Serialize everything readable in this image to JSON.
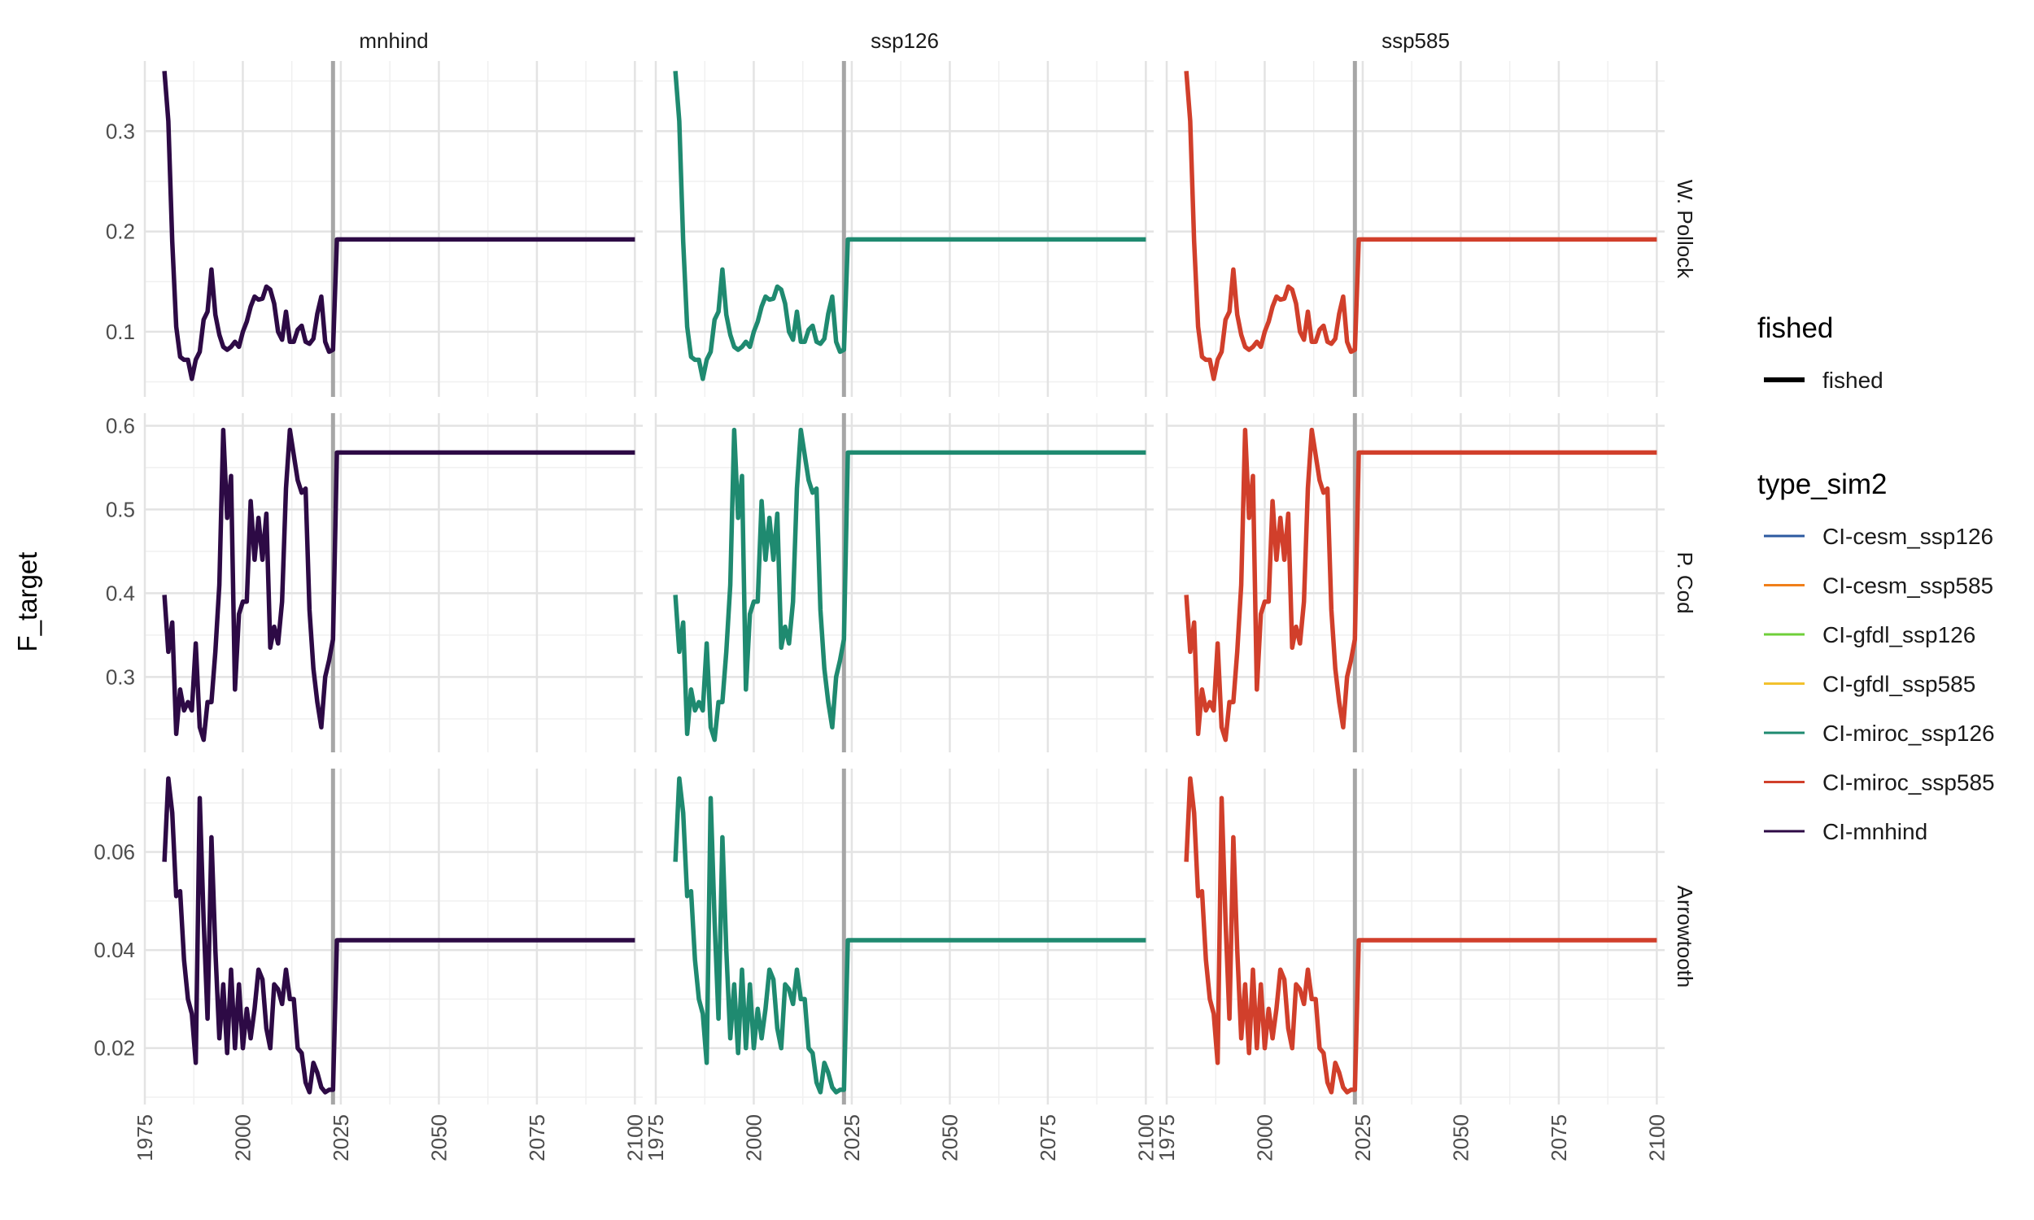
{
  "chart_data": {
    "type": "line",
    "facet_cols": [
      "mnhind",
      "ssp126",
      "ssp585"
    ],
    "facet_rows": [
      "W. Pollock",
      "P. Cod",
      "Arrowtooth"
    ],
    "ylabel": "F_target",
    "xlabel": "",
    "x_ticks": [
      1975,
      2000,
      2025,
      2050,
      2075,
      2100
    ],
    "x_range": [
      1975,
      2102
    ],
    "vline_x": 2023,
    "grid": true,
    "legend_position": "right",
    "column_colors": {
      "mnhind": "#2d0a45",
      "ssp126": "#1f8a70",
      "ssp585": "#d13f2b"
    },
    "legend_fished": {
      "title": "fished",
      "items": [
        {
          "label": "fished",
          "color": "#000000"
        }
      ]
    },
    "legend_type_sim2": {
      "title": "type_sim2",
      "items": [
        {
          "label": "CI-cesm_ssp126",
          "color": "#2c5aa0"
        },
        {
          "label": "CI-cesm_ssp585",
          "color": "#f07f1a"
        },
        {
          "label": "CI-gfdl_ssp126",
          "color": "#6fcf3a"
        },
        {
          "label": "CI-gfdl_ssp585",
          "color": "#f2c12e"
        },
        {
          "label": "CI-miroc_ssp126",
          "color": "#1f8a70"
        },
        {
          "label": "CI-miroc_ssp585",
          "color": "#d13f2b"
        },
        {
          "label": "CI-mnhind",
          "color": "#2d0a45"
        }
      ]
    },
    "rows": [
      {
        "name": "W. Pollock",
        "ylim": [
          0.035,
          0.37
        ],
        "y_ticks": [
          0.1,
          0.2,
          0.3
        ],
        "y_tick_labels": [
          "0.1",
          "0.2",
          "0.3"
        ],
        "x": [
          1980,
          1981,
          1982,
          1983,
          1984,
          1985,
          1986,
          1987,
          1988,
          1989,
          1990,
          1991,
          1992,
          1993,
          1994,
          1995,
          1996,
          1997,
          1998,
          1999,
          2000,
          2001,
          2002,
          2003,
          2004,
          2005,
          2006,
          2007,
          2008,
          2009,
          2010,
          2011,
          2012,
          2013,
          2014,
          2015,
          2016,
          2017,
          2018,
          2019,
          2020,
          2021,
          2022,
          2023,
          2024,
          2100
        ],
        "values": [
          0.36,
          0.31,
          0.19,
          0.105,
          0.075,
          0.072,
          0.072,
          0.053,
          0.072,
          0.08,
          0.112,
          0.12,
          0.162,
          0.117,
          0.097,
          0.085,
          0.082,
          0.085,
          0.09,
          0.085,
          0.1,
          0.11,
          0.125,
          0.135,
          0.132,
          0.133,
          0.145,
          0.142,
          0.128,
          0.1,
          0.092,
          0.12,
          0.09,
          0.09,
          0.102,
          0.106,
          0.09,
          0.088,
          0.093,
          0.118,
          0.135,
          0.09,
          0.08,
          0.082,
          0.192,
          0.192
        ]
      },
      {
        "name": "P. Cod",
        "ylim": [
          0.21,
          0.615
        ],
        "y_ticks": [
          0.3,
          0.4,
          0.5,
          0.6
        ],
        "y_tick_labels": [
          "0.3",
          "0.4",
          "0.5",
          "0.6"
        ],
        "x": [
          1980,
          1981,
          1982,
          1983,
          1984,
          1985,
          1986,
          1987,
          1988,
          1989,
          1990,
          1991,
          1992,
          1993,
          1994,
          1995,
          1996,
          1997,
          1998,
          1999,
          2000,
          2001,
          2002,
          2003,
          2004,
          2005,
          2006,
          2007,
          2008,
          2009,
          2010,
          2011,
          2012,
          2013,
          2014,
          2015,
          2016,
          2017,
          2018,
          2019,
          2020,
          2021,
          2022,
          2023,
          2024,
          2100
        ],
        "values": [
          0.398,
          0.33,
          0.365,
          0.232,
          0.285,
          0.26,
          0.27,
          0.26,
          0.34,
          0.24,
          0.225,
          0.27,
          0.27,
          0.33,
          0.41,
          0.595,
          0.49,
          0.54,
          0.285,
          0.375,
          0.39,
          0.39,
          0.51,
          0.44,
          0.49,
          0.44,
          0.495,
          0.335,
          0.36,
          0.34,
          0.39,
          0.525,
          0.595,
          0.565,
          0.535,
          0.52,
          0.525,
          0.38,
          0.31,
          0.27,
          0.24,
          0.3,
          0.32,
          0.345,
          0.568,
          0.568
        ]
      },
      {
        "name": "Arrowtooth",
        "ylim": [
          0.0085,
          0.077
        ],
        "y_ticks": [
          0.02,
          0.04,
          0.06
        ],
        "y_tick_labels": [
          "0.02",
          "0.04",
          "0.06"
        ],
        "x": [
          1980,
          1981,
          1982,
          1983,
          1984,
          1985,
          1986,
          1987,
          1988,
          1989,
          1990,
          1991,
          1992,
          1993,
          1994,
          1995,
          1996,
          1997,
          1998,
          1999,
          2000,
          2001,
          2002,
          2003,
          2004,
          2005,
          2006,
          2007,
          2008,
          2009,
          2010,
          2011,
          2012,
          2013,
          2014,
          2015,
          2016,
          2017,
          2018,
          2019,
          2020,
          2021,
          2022,
          2023,
          2024,
          2100
        ],
        "values": [
          0.058,
          0.075,
          0.068,
          0.051,
          0.052,
          0.038,
          0.03,
          0.027,
          0.017,
          0.071,
          0.046,
          0.026,
          0.063,
          0.04,
          0.022,
          0.033,
          0.019,
          0.036,
          0.02,
          0.033,
          0.02,
          0.028,
          0.022,
          0.028,
          0.036,
          0.034,
          0.024,
          0.02,
          0.033,
          0.032,
          0.029,
          0.036,
          0.03,
          0.03,
          0.02,
          0.019,
          0.013,
          0.011,
          0.017,
          0.015,
          0.012,
          0.011,
          0.0115,
          0.0115,
          0.042,
          0.042
        ]
      }
    ]
  }
}
